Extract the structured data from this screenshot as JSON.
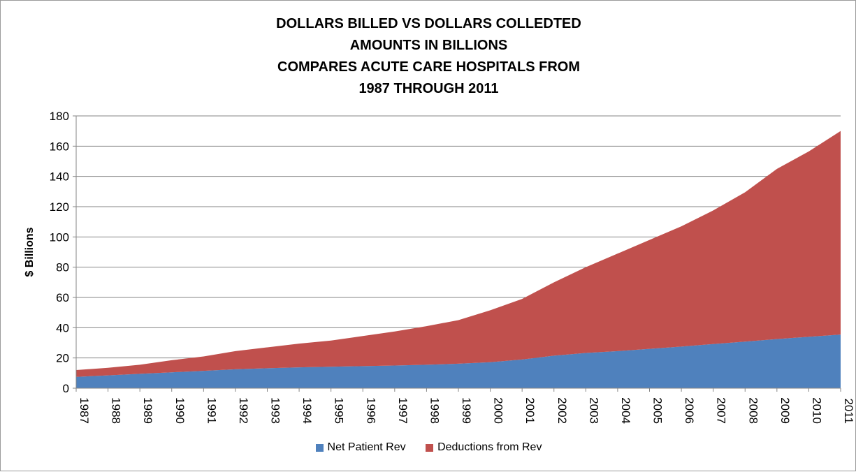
{
  "chart_data": {
    "type": "area",
    "stacked": true,
    "title_lines": [
      "DOLLARS BILLED VS DOLLARS COLLEDTED",
      "AMOUNTS IN BILLIONS",
      "COMPARES ACUTE CARE HOSPITALS FROM",
      "1987 THROUGH 2011"
    ],
    "xlabel": "",
    "ylabel": "$ Billions",
    "ylim": [
      0,
      180
    ],
    "yticks": [
      0,
      20,
      40,
      60,
      80,
      100,
      120,
      140,
      160,
      180
    ],
    "grid": true,
    "legend_position": "bottom",
    "categories": [
      "1987",
      "1988",
      "1989",
      "1990",
      "1991",
      "1992",
      "1993",
      "1994",
      "1995",
      "1996",
      "1997",
      "1998",
      "1999",
      "2000",
      "2001",
      "2002",
      "2003",
      "2004",
      "2005",
      "2006",
      "2007",
      "2008",
      "2009",
      "2010",
      "2011"
    ],
    "series": [
      {
        "name": "Net Patient Rev",
        "color": "#4f81bd",
        "values": [
          7.5,
          8.5,
          9.5,
          10.5,
          11.5,
          12.5,
          13.2,
          13.8,
          14.2,
          14.6,
          15.0,
          15.5,
          16.2,
          17.2,
          19.0,
          21.5,
          23.3,
          24.5,
          26.0,
          27.5,
          29.2,
          30.8,
          32.5,
          34.0,
          35.5
        ]
      },
      {
        "name": "Deductions from Rev",
        "color": "#c0504d",
        "values": [
          4.5,
          5.0,
          6.0,
          8.0,
          9.5,
          12.0,
          13.8,
          15.7,
          17.3,
          19.9,
          22.5,
          25.5,
          28.8,
          34.3,
          40.0,
          48.5,
          56.7,
          64.5,
          72.0,
          79.5,
          88.3,
          98.7,
          112.5,
          122.5,
          134.5
        ]
      }
    ]
  }
}
